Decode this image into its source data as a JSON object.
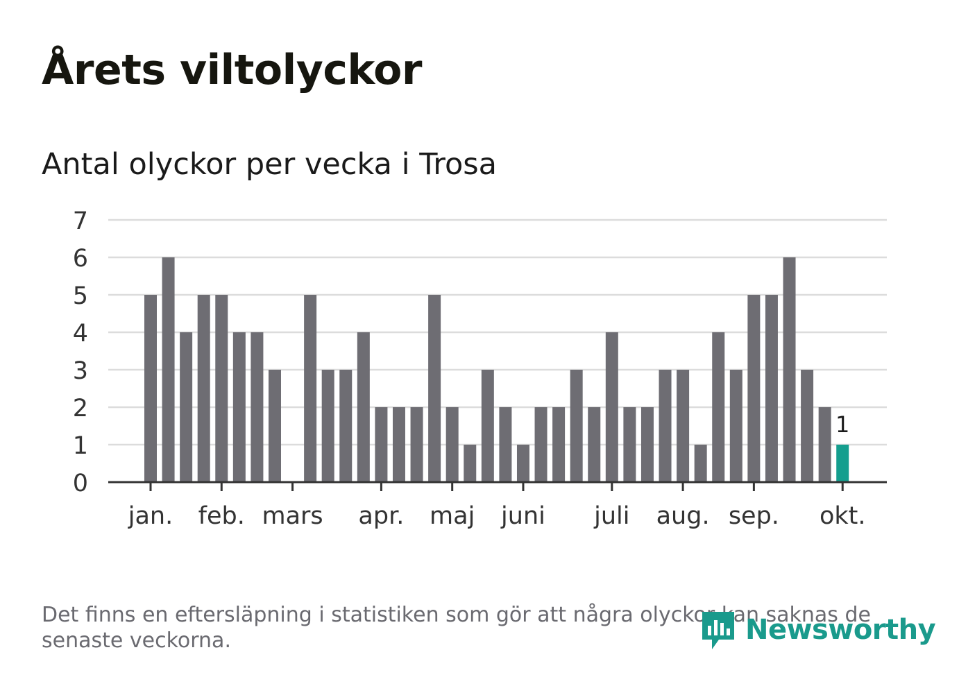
{
  "header": {
    "title": "Årets viltolyckor",
    "subtitle": "Antal olyckor per vecka i Trosa"
  },
  "footer": {
    "note": "Det finns en eftersläpning i statistiken som gör att några olyckor kan saknas de senaste veckorna.",
    "brand": "Newsworthy"
  },
  "colors": {
    "bar": "#6e6d73",
    "highlight": "#149e8e",
    "grid": "#dcdcdc",
    "axis": "#333333",
    "brand": "#1a9a8c"
  },
  "chart_data": {
    "type": "bar",
    "title": "Antal olyckor per vecka i Trosa",
    "xlabel": "",
    "ylabel": "",
    "ylim": [
      0,
      7
    ],
    "yticks": [
      "0",
      "1",
      "2",
      "3",
      "4",
      "5",
      "6",
      "7"
    ],
    "month_labels": [
      "jan.",
      "feb.",
      "mars",
      "apr.",
      "maj",
      "juni",
      "juli",
      "aug.",
      "sep.",
      "okt."
    ],
    "month_start_week": [
      1,
      5,
      9,
      14,
      18,
      22,
      27,
      31,
      35,
      40
    ],
    "weeks": [
      1,
      2,
      3,
      4,
      5,
      6,
      7,
      8,
      9,
      10,
      11,
      12,
      13,
      14,
      15,
      16,
      17,
      18,
      19,
      20,
      21,
      22,
      23,
      24,
      25,
      26,
      27,
      28,
      29,
      30,
      31,
      32,
      33,
      34,
      35,
      36,
      37,
      38,
      39,
      40
    ],
    "values": [
      5,
      6,
      4,
      5,
      5,
      4,
      4,
      3,
      0,
      5,
      3,
      3,
      4,
      2,
      2,
      2,
      5,
      2,
      1,
      3,
      2,
      1,
      2,
      2,
      3,
      2,
      4,
      2,
      2,
      3,
      3,
      1,
      4,
      3,
      5,
      5,
      6,
      3,
      2,
      1
    ],
    "highlight_index": 39,
    "highlight_label": "1"
  }
}
